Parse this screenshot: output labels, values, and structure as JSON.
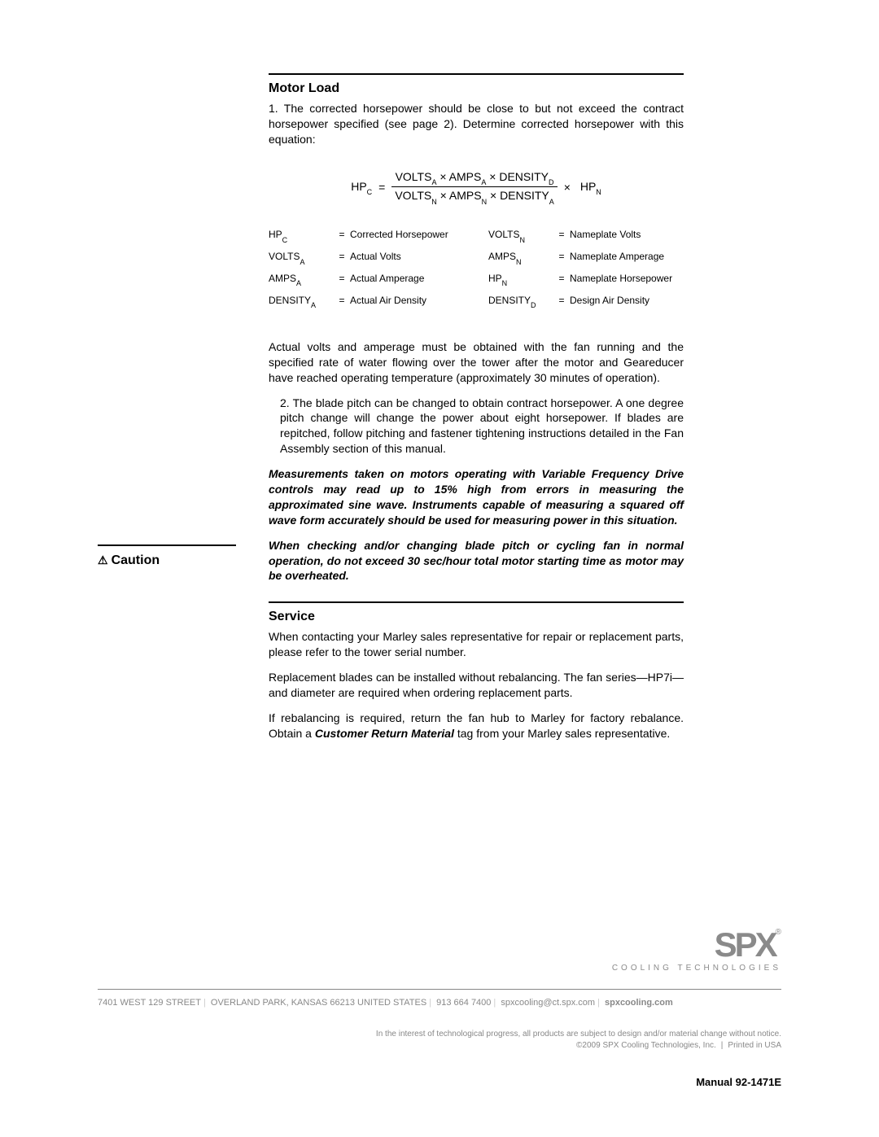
{
  "motorLoad": {
    "title": "Motor Load",
    "para1": "1. The corrected horsepower should be close to but not exceed the contract horsepower specified (see page 2). Determine corrected horsepower with this equation:",
    "equation": {
      "lhs": "HP",
      "lhs_sub": "C",
      "eq": "=",
      "num_parts": [
        {
          "t": "VOLTS",
          "s": "A"
        },
        {
          "t": " × "
        },
        {
          "t": "AMPS",
          "s": "A"
        },
        {
          "t": " × "
        },
        {
          "t": "DENSITY",
          "s": "D"
        }
      ],
      "den_parts": [
        {
          "t": "VOLTS",
          "s": "N"
        },
        {
          "t": " × "
        },
        {
          "t": "AMPS",
          "s": "N"
        },
        {
          "t": " × "
        },
        {
          "t": "DENSITY",
          "s": "A"
        }
      ],
      "times": "×",
      "rhs": "HP",
      "rhs_sub": "N"
    },
    "defs_left": [
      {
        "sym": "HP",
        "sub": "C",
        "val": "Corrected Horsepower"
      },
      {
        "sym": "VOLTS",
        "sub": "A",
        "val": "Actual Volts"
      },
      {
        "sym": "AMPS",
        "sub": "A",
        "val": "Actual Amperage"
      },
      {
        "sym": "DENSITY",
        "sub": "A",
        "val": "Actual Air Density"
      }
    ],
    "defs_right": [
      {
        "sym": "VOLTS",
        "sub": "N",
        "val": "Nameplate Volts"
      },
      {
        "sym": "AMPS",
        "sub": "N",
        "val": "Nameplate Amperage"
      },
      {
        "sym": "HP",
        "sub": "N",
        "val": "Nameplate Horsepower"
      },
      {
        "sym": "DENSITY",
        "sub": "D",
        "val": "Design Air Density"
      }
    ],
    "para2": "Actual volts and amperage must be obtained with the fan running and the specified rate of water flowing over the tower after the motor and Geareducer have reached operating temperature (approximately 30 minutes of operation).",
    "para3": "2. The blade pitch can be changed to obtain contract horsepower. A one degree pitch change will change the power about eight horsepower. If blades are repitched, follow pitching and fastener tightening instructions detailed in the  Fan Assembly section of this manual."
  },
  "caution": {
    "label": "Caution",
    "text1": "Measurements taken on motors operating with Variable Frequency Drive controls may read up to 15% high from errors in measuring the approximated sine wave. Instruments capable of measuring a squared off wave form accurately should be used for measuring power in this situation.",
    "text2": "When checking and/or changing blade pitch or cycling fan in normal operation, do not exceed 30 sec/hour total motor starting time as motor may be overheated."
  },
  "service": {
    "title": "Service",
    "para1": "When contacting your Marley sales representative for repair or replacement parts, please refer to the tower serial number.",
    "para2": "Replacement blades can be installed without rebalancing. The fan series—HP7i—and diameter are required when ordering replacement  parts.",
    "para3_a": "If rebalancing is required, return the fan hub to Marley for factory rebalance. Obtain a ",
    "para3_em": "Customer Return Material",
    "para3_b": " tag from your Marley sales representative."
  },
  "footer": {
    "logo_main": "SPX",
    "logo_tag": "COOLING TECHNOLOGIES",
    "address_street": "7401 WEST 129 STREET",
    "address_city": "OVERLAND PARK, KANSAS 66213 UNITED STATES",
    "address_phone": "913 664 7400",
    "address_email": "spxcooling@ct.spx.com",
    "address_web": "spxcooling.com",
    "disclaimer1": "In the interest of technological progress, all products are subject to design and/or material change without notice.",
    "disclaimer2a": "©2009 SPX Cooling Technologies, Inc.",
    "disclaimer2b": "Printed in USA",
    "manual": "Manual 92-1471E"
  }
}
